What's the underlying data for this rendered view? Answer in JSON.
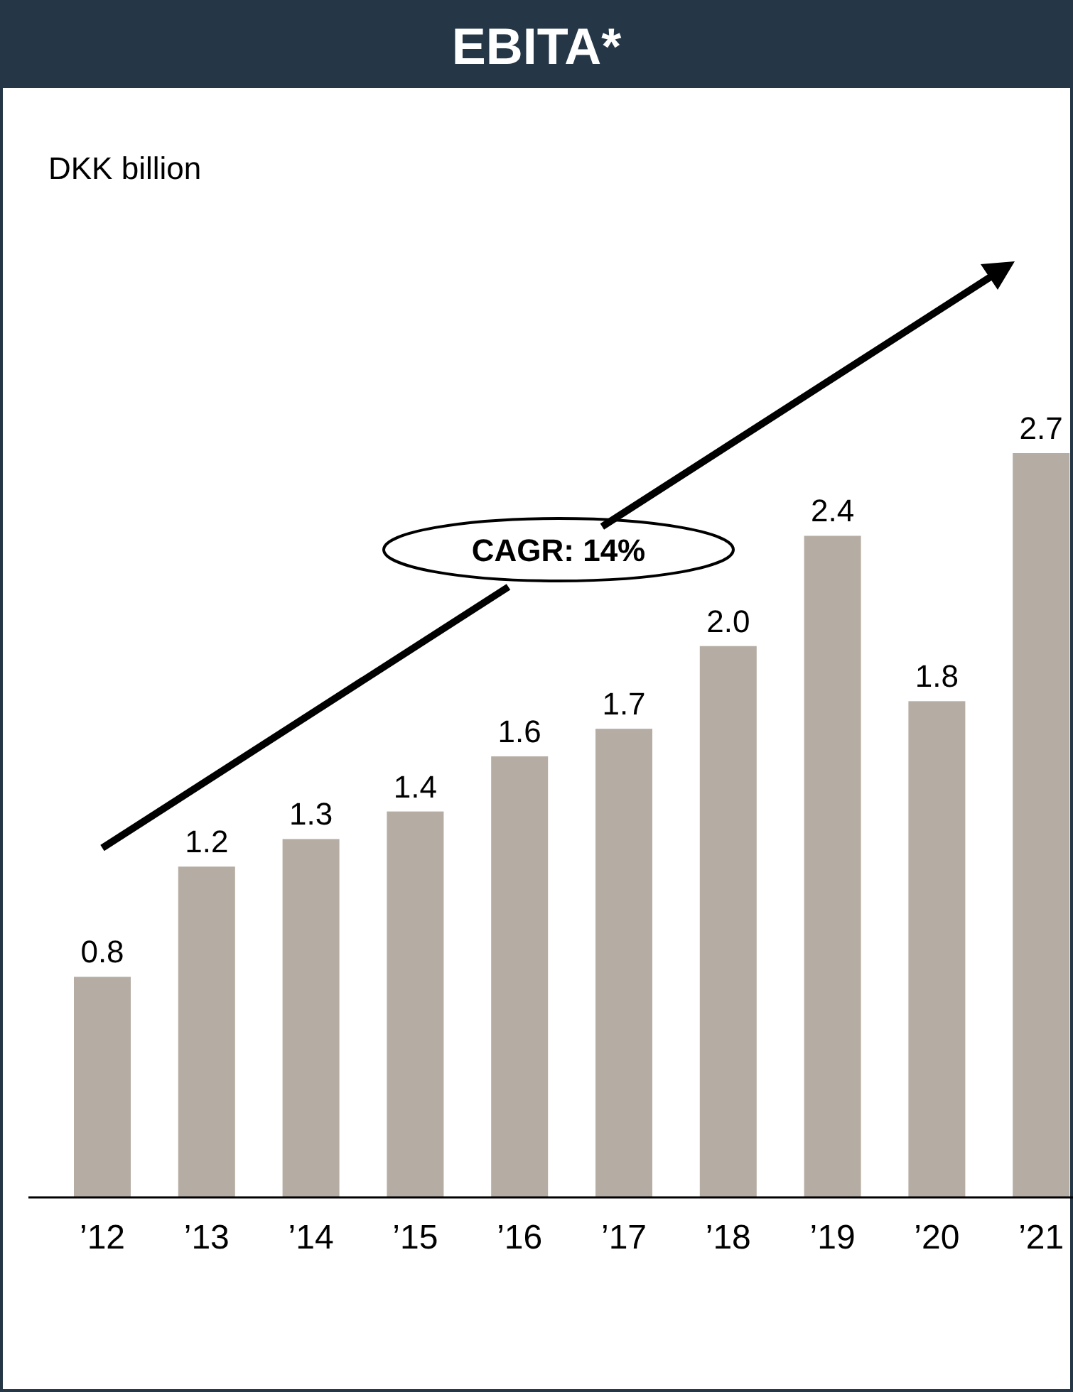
{
  "chart_data": {
    "type": "bar",
    "title": "EBITA*",
    "categories": [
      "’12",
      "’13",
      "’14",
      "’15",
      "’16",
      "’17",
      "’18",
      "’19",
      "’20",
      "’21"
    ],
    "values": [
      0.8,
      1.2,
      1.3,
      1.4,
      1.6,
      1.7,
      2.0,
      2.4,
      1.8,
      2.7
    ],
    "value_labels": [
      "0.8",
      "1.2",
      "1.3",
      "1.4",
      "1.6",
      "1.7",
      "2.0",
      "2.4",
      "1.8",
      "2.7"
    ],
    "color": "#b5ada3",
    "annotations": [
      "DKK billion",
      "CAGR: 14%"
    ]
  }
}
